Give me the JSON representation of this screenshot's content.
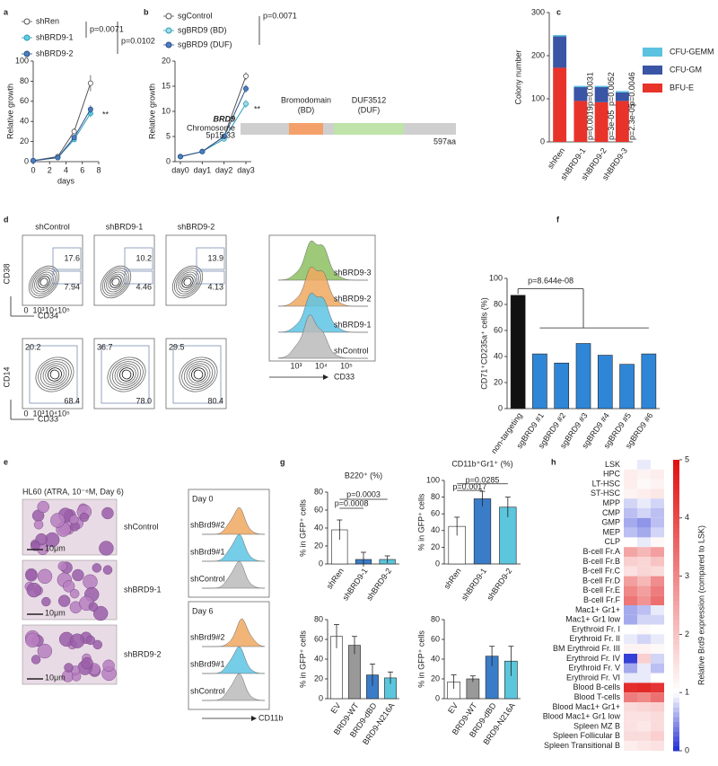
{
  "panel_labels": [
    "a",
    "b",
    "c",
    "d",
    "e",
    "f",
    "g",
    "h"
  ],
  "chart_data": [
    {
      "type": "line",
      "ylabel": "Relative growth",
      "xlabel": "days",
      "x": [
        0,
        3,
        5,
        7
      ],
      "xlim": [
        0,
        8
      ],
      "xticks": [
        0,
        2,
        4,
        6,
        8
      ],
      "ylim": [
        0,
        100
      ],
      "yticks": [
        0,
        20,
        40,
        60,
        80,
        100
      ],
      "series": [
        {
          "name": "shRen",
          "color": "#555555",
          "fill": "#ffffff",
          "values": [
            1,
            5,
            30,
            78
          ],
          "errors": [
            0,
            1,
            3,
            8
          ]
        },
        {
          "name": "shBRD9-1",
          "color": "#2a9bb5",
          "fill": "#5fd0e0",
          "values": [
            1,
            4,
            22,
            48
          ],
          "errors": [
            0,
            1,
            2,
            4
          ]
        },
        {
          "name": "shBRD9-2",
          "color": "#2b4f8a",
          "fill": "#4a7fc0",
          "values": [
            1,
            4,
            24,
            52
          ],
          "errors": [
            0,
            1,
            2,
            4
          ]
        }
      ],
      "annotations": [
        "p=0.0071",
        "p=0.0102",
        "**"
      ]
    },
    {
      "type": "line",
      "ylabel": "Relative growth",
      "categories": [
        "day0",
        "day1",
        "day2",
        "day3"
      ],
      "ylim": [
        0,
        20
      ],
      "yticks": [
        0,
        5,
        10,
        15,
        20
      ],
      "series": [
        {
          "name": "sgControl",
          "color": "#555555",
          "fill": "#ffffff",
          "values": [
            1,
            2,
            5,
            17
          ],
          "errors": [
            0,
            0.3,
            0.6,
            0.8
          ]
        },
        {
          "name": "sgBRD9 (BD)",
          "color": "#2a9bb5",
          "fill": "#9fdde8",
          "values": [
            1,
            2,
            4.5,
            11.5
          ],
          "errors": [
            0,
            0.3,
            0.5,
            0.8
          ]
        },
        {
          "name": "sgBRD9 (DUF)",
          "color": "#2b4f8a",
          "fill": "#4a7fc0",
          "values": [
            1,
            2,
            5,
            14.5
          ],
          "errors": [
            0,
            0.3,
            0.5,
            0.8
          ]
        }
      ],
      "annotations": [
        "p=0.0071",
        "**"
      ]
    },
    {
      "type": "stacked_bar",
      "ylabel": "Colony number",
      "categories": [
        "shRen",
        "shBRD9-1",
        "shBRD9-2",
        "shBRD9-3"
      ],
      "ylim": [
        0,
        300
      ],
      "yticks": [
        0,
        100,
        200,
        300
      ],
      "series": [
        {
          "name": "BFU-E",
          "color": "#e8332a",
          "values": [
            172,
            95,
            92,
            95
          ]
        },
        {
          "name": "CFU-GM",
          "color": "#3a55a5",
          "values": [
            73,
            32,
            35,
            20
          ]
        },
        {
          "name": "CFU-GEMM",
          "color": "#5bc2e0",
          "values": [
            3,
            3,
            3,
            3
          ]
        }
      ],
      "annotations": [
        "p=0.0031",
        "p=0.0019",
        "p=0.0052",
        "p=3e-05",
        "p=0.0046",
        "p=2.3e-05"
      ]
    },
    {
      "type": "bar",
      "ylabel": "CD71⁺CD235a⁺ cells (%)",
      "categories": [
        "non-targeting",
        "sgBRD9 #1",
        "sgBRD9 #2",
        "sgBRD9 #3",
        "sgBRD9 #4",
        "sgBRD9 #5",
        "sgBRD9 #6"
      ],
      "values": [
        87,
        42,
        35,
        50,
        41,
        34,
        42
      ],
      "colors": [
        "#111111",
        "#2f86d6",
        "#2f86d6",
        "#2f86d6",
        "#2f86d6",
        "#2f86d6",
        "#2f86d6"
      ],
      "ylim": [
        0,
        100
      ],
      "yticks": [
        0,
        20,
        40,
        60,
        80,
        100
      ],
      "annotations": [
        "p=8.644e-08"
      ]
    },
    {
      "type": "bar",
      "title": "B220⁺ (%)",
      "ylabel": "% in GFP⁺ cells",
      "categories": [
        "shRen",
        "shBRD9-1",
        "shBRD9-2"
      ],
      "values": [
        38,
        5,
        5
      ],
      "errors": [
        11,
        8,
        4
      ],
      "colors": [
        "#ffffff",
        "#3a7cc8",
        "#5bc6dc"
      ],
      "ylim": [
        0,
        80
      ],
      "yticks": [
        0,
        20,
        40,
        60,
        80
      ],
      "annotations": [
        "p=0.0008",
        "p=0.0003"
      ]
    },
    {
      "type": "bar",
      "title": "CD11b⁺Gr1⁺ (%)",
      "ylabel": "% in GFP⁺ cells",
      "categories": [
        "shRen",
        "shBRD9-1",
        "shBRD9-2"
      ],
      "values": [
        45,
        78,
        68
      ],
      "errors": [
        11,
        9,
        12
      ],
      "colors": [
        "#ffffff",
        "#3a7cc8",
        "#5bc6dc"
      ],
      "ylim": [
        0,
        100
      ],
      "yticks": [
        0,
        20,
        40,
        60,
        80,
        100
      ],
      "annotations": [
        "p=0.0017",
        "p=0.0285"
      ]
    },
    {
      "type": "bar",
      "ylabel": "% in GFP⁺ cells",
      "categories": [
        "EV",
        "BRD9-WT",
        "BRD9-dBD",
        "BRD9-N216A"
      ],
      "values": [
        63,
        54,
        24,
        21
      ],
      "errors": [
        12,
        9,
        11,
        6
      ],
      "colors": [
        "#ffffff",
        "#999999",
        "#3a7cc8",
        "#5bc6dc"
      ],
      "ylim": [
        0,
        80
      ],
      "yticks": [
        0,
        20,
        40,
        60,
        80
      ]
    },
    {
      "type": "bar",
      "ylabel": "% in GFP⁺ cells",
      "categories": [
        "EV",
        "BRD9-WT",
        "BRD9-dBD",
        "BRD9-N216A"
      ],
      "values": [
        17,
        20,
        43,
        38
      ],
      "errors": [
        7,
        3,
        10,
        15
      ],
      "colors": [
        "#ffffff",
        "#999999",
        "#3a7cc8",
        "#5bc6dc"
      ],
      "ylim": [
        0,
        80
      ],
      "yticks": [
        0,
        20,
        40,
        60,
        80
      ]
    },
    {
      "type": "heatmap",
      "colorbar_label": "Relative Brd9 expression (compared to LSK)",
      "clim": [
        0,
        5
      ],
      "cticks": [
        0,
        1,
        2,
        3,
        4,
        5
      ],
      "color_stops": [
        {
          "value": 0,
          "color": "#1f2bd1"
        },
        {
          "value": 1,
          "color": "#ffffff"
        },
        {
          "value": 5,
          "color": "#e01010"
        }
      ],
      "rows": [
        "LSK",
        "HPC",
        "LT-HSC",
        "ST-HSC",
        "MPP",
        "CMP",
        "GMP",
        "MEP",
        "CLP",
        "B-cell Fr.A",
        "B-cell Fr.B",
        "B-cell Fr.C",
        "B-cell Fr.D",
        "B-cell Fr.E",
        "B-cell Fr.F",
        "Mac1+ Gr1+",
        "Mac1+ Gr1 low",
        "Erythroid Fr. I",
        "Erythroid Fr. II",
        "BM Erythroid Fr. III",
        "Erythroid Fr. IV",
        "Erythroid Fr. V",
        "Erythroid Fr. VI",
        "Blood B-cells",
        "Blood T-cells",
        "Blood Mac1+ Gr1+",
        "Blood Mac1+ Gr1 low",
        "Spleen MZ B",
        "Spleen Follicular B",
        "Spleen Transitional B"
      ],
      "values": [
        [
          1,
          0.9,
          1
        ],
        [
          1.3,
          1.2,
          1.3
        ],
        [
          1.3,
          1.1,
          1.2
        ],
        [
          1.2,
          1.3,
          1.4
        ],
        [
          0.8,
          0.9,
          0.8
        ],
        [
          0.7,
          0.8,
          0.7
        ],
        [
          0.6,
          0.5,
          0.7
        ],
        [
          0.7,
          0.6,
          0.8
        ],
        [
          1,
          0.9,
          1.1
        ],
        [
          2.5,
          2.2,
          2.6
        ],
        [
          1.8,
          1.7,
          2
        ],
        [
          1.5,
          1.7,
          1.6
        ],
        [
          2.6,
          2.2,
          2.9
        ],
        [
          3,
          2.6,
          3.2
        ],
        [
          3.3,
          2.8,
          3.4
        ],
        [
          0.6,
          0.7,
          0.9
        ],
        [
          0.6,
          0.8,
          0.8
        ],
        [
          1,
          1.1,
          1
        ],
        [
          0.9,
          0.8,
          0.9
        ],
        [
          1.2,
          1.2,
          1.1
        ],
        [
          0.1,
          1.8,
          0.8
        ],
        [
          0.6,
          0.9,
          0.7
        ],
        [
          0.9,
          0.9,
          1
        ],
        [
          4.5,
          4.6,
          4.4
        ],
        [
          3.2,
          3,
          3.4
        ],
        [
          1.6,
          1.7,
          1.8
        ],
        [
          1.5,
          1.5,
          1.6
        ],
        [
          1.5,
          1.4,
          1.6
        ],
        [
          1.6,
          1.6,
          1.8
        ],
        [
          1.3,
          1.4,
          1.5
        ]
      ]
    }
  ],
  "domain_diagram": {
    "gene": "BRD9",
    "chromosome": "Chromosome",
    "locus": "5p15.33",
    "domains": [
      {
        "name": "Bromodomain",
        "abbr": "(BD)"
      },
      {
        "name": "DUF3512",
        "abbr": "(DUF)"
      }
    ],
    "length": "597aa"
  },
  "flow": {
    "top_row": [
      {
        "title": "shControl",
        "gates": [
          "17.6",
          "7.94"
        ]
      },
      {
        "title": "shBRD9-1",
        "gates": [
          "10.2",
          "4.46"
        ]
      },
      {
        "title": "shBRD9-2",
        "gates": [
          "13.9",
          "4.13"
        ]
      }
    ],
    "bottom_row": [
      {
        "gates": [
          "20.2",
          "68.4"
        ]
      },
      {
        "gates": [
          "36.7",
          "78.0"
        ]
      },
      {
        "gates": [
          "29.5",
          "80.4"
        ]
      }
    ],
    "top_y_label": "CD38",
    "top_x_label": "CD34",
    "bottom_y_label": "CD14",
    "bottom_x_label": "CD33",
    "axis_ticks": [
      "0",
      "10³",
      "10⁴",
      "10⁵"
    ],
    "histogram": {
      "samples": [
        "shBRD9-3",
        "shBRD9-2",
        "shBRD9-1",
        "shControl"
      ],
      "x_label": "CD33",
      "ticks": [
        "10³",
        "10⁴",
        "10⁵"
      ]
    }
  },
  "microscopy": {
    "title": "HL60 (ATRA, 10⁻⁶M, Day 6)",
    "rows": [
      "shControl",
      "shBRD9-1",
      "shBRD9-2"
    ],
    "scale_bar": "10μm",
    "histograms": [
      {
        "title": "Day 0",
        "samples": [
          "shBrd9#2",
          "shBrd9#1",
          "shControl"
        ]
      },
      {
        "title": "Day 6",
        "samples": [
          "shBrd9#2",
          "shBrd9#1",
          "shControl"
        ]
      }
    ],
    "x_label": "CD11b"
  }
}
